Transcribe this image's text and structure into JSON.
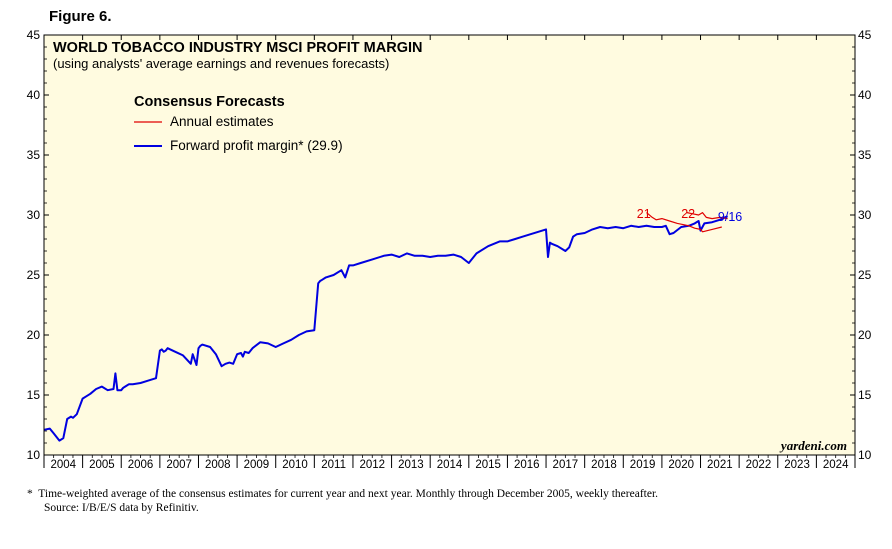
{
  "figure_label": "Figure 6.",
  "chart_data": {
    "type": "line",
    "title": "WORLD TOBACCO INDUSTRY MSCI PROFIT MARGIN",
    "subtitle": "(using analysts' average earnings and revenues forecasts)",
    "legend_title": "Consensus Forecasts",
    "legend": [
      {
        "label": "Annual estimates",
        "color": "#e00000"
      },
      {
        "label": "Forward profit margin* (29.9)",
        "color": "#0000e0"
      }
    ],
    "watermark": "yardeni.com",
    "ylim": [
      10,
      45
    ],
    "yticks": [
      10,
      15,
      20,
      25,
      30,
      35,
      40,
      45
    ],
    "xlim": [
      2004,
      2025
    ],
    "xtick_labels": [
      "2004",
      "2005",
      "2006",
      "2007",
      "2008",
      "2009",
      "2010",
      "2011",
      "2012",
      "2013",
      "2014",
      "2015",
      "2016",
      "2017",
      "2018",
      "2019",
      "2020",
      "2021",
      "2022",
      "2023",
      "2024"
    ],
    "background": "#fffbe0",
    "annotations": [
      {
        "text": "21",
        "x": 2019.35,
        "y": 30.1,
        "color": "#e00000"
      },
      {
        "text": "22",
        "x": 2020.5,
        "y": 30.1,
        "color": "#e00000"
      },
      {
        "text": "9/16",
        "x": 2021.45,
        "y": 29.85,
        "color": "#0000e0"
      }
    ],
    "series": [
      {
        "name": "Forward profit margin* (29.9)",
        "color": "#0000e0",
        "x": [
          2004.0,
          2004.15,
          2004.25,
          2004.4,
          2004.5,
          2004.6,
          2004.7,
          2004.75,
          2004.85,
          2005.0,
          2005.1,
          2005.2,
          2005.35,
          2005.5,
          2005.65,
          2005.8,
          2005.85,
          2005.9,
          2006.0,
          2006.05,
          2006.1,
          2006.2,
          2006.3,
          2006.5,
          2006.7,
          2006.9,
          2007.0,
          2007.05,
          2007.1,
          2007.15,
          2007.2,
          2007.4,
          2007.6,
          2007.8,
          2007.85,
          2007.95,
          2008.0,
          2008.05,
          2008.1,
          2008.3,
          2008.45,
          2008.6,
          2008.7,
          2008.8,
          2008.9,
          2009.0,
          2009.1,
          2009.15,
          2009.2,
          2009.3,
          2009.4,
          2009.6,
          2009.8,
          2010.0,
          2010.2,
          2010.4,
          2010.6,
          2010.8,
          2011.0,
          2011.1,
          2011.15,
          2011.2,
          2011.3,
          2011.5,
          2011.7,
          2011.8,
          2011.9,
          2012.0,
          2012.2,
          2012.5,
          2012.8,
          2013.0,
          2013.2,
          2013.4,
          2013.6,
          2013.8,
          2014.0,
          2014.2,
          2014.4,
          2014.6,
          2014.8,
          2015.0,
          2015.2,
          2015.5,
          2015.8,
          2016.0,
          2016.2,
          2016.4,
          2016.6,
          2016.8,
          2017.0,
          2017.05,
          2017.1,
          2017.15,
          2017.3,
          2017.5,
          2017.6,
          2017.7,
          2017.8,
          2018.0,
          2018.2,
          2018.4,
          2018.6,
          2018.8,
          2019.0,
          2019.2,
          2019.4,
          2019.6,
          2019.8,
          2020.0,
          2020.1,
          2020.2,
          2020.3,
          2020.5,
          2020.7,
          2020.85,
          2020.95,
          2021.0,
          2021.1,
          2021.3,
          2021.5,
          2021.7
        ],
        "values": [
          12.1,
          12.2,
          11.8,
          11.2,
          11.4,
          13.0,
          13.2,
          13.1,
          13.4,
          14.7,
          14.9,
          15.1,
          15.5,
          15.7,
          15.4,
          15.5,
          16.8,
          15.4,
          15.4,
          15.6,
          15.7,
          15.9,
          15.9,
          16.0,
          16.2,
          16.4,
          18.7,
          18.8,
          18.6,
          18.7,
          18.9,
          18.6,
          18.3,
          17.6,
          18.4,
          17.5,
          18.9,
          19.1,
          19.2,
          19.0,
          18.4,
          17.4,
          17.6,
          17.7,
          17.6,
          18.4,
          18.5,
          18.2,
          18.6,
          18.5,
          18.9,
          19.4,
          19.3,
          19.0,
          19.3,
          19.6,
          20.0,
          20.3,
          20.4,
          24.3,
          24.5,
          24.6,
          24.8,
          25.0,
          25.4,
          24.8,
          25.8,
          25.8,
          26.0,
          26.3,
          26.6,
          26.7,
          26.5,
          26.8,
          26.6,
          26.6,
          26.5,
          26.6,
          26.6,
          26.7,
          26.5,
          26.0,
          26.8,
          27.4,
          27.8,
          27.8,
          28.0,
          28.2,
          28.4,
          28.6,
          28.8,
          26.5,
          27.7,
          27.6,
          27.4,
          27.0,
          27.3,
          28.2,
          28.4,
          28.5,
          28.8,
          29.0,
          28.9,
          29.0,
          28.9,
          29.1,
          29.0,
          29.1,
          29.0,
          29.0,
          29.1,
          28.4,
          28.5,
          29.0,
          29.1,
          29.3,
          29.5,
          28.7,
          29.3,
          29.4,
          29.6,
          29.9
        ]
      },
      {
        "name": "",
        "color": "#e00000",
        "x": [
          2019.6,
          2019.75,
          2019.85,
          2020.0,
          2020.2,
          2020.4,
          2020.55,
          2020.7,
          2020.85,
          2021.0,
          2021.05,
          2021.3,
          2021.55
        ],
        "values": [
          30.2,
          29.8,
          29.6,
          29.7,
          29.5,
          29.3,
          29.2,
          29.1,
          28.9,
          28.8,
          28.6,
          28.8,
          29.0
        ]
      },
      {
        "name": "",
        "color": "#e00000",
        "x": [
          2020.65,
          2020.8,
          2020.95,
          2021.05,
          2021.15,
          2021.3,
          2021.5,
          2021.7
        ],
        "values": [
          30.2,
          30.1,
          30.0,
          30.2,
          29.8,
          29.7,
          29.8,
          29.7
        ]
      }
    ]
  },
  "footnote": "*  Time-weighted average of the consensus estimates for current year and next year. Monthly through December 2005, weekly thereafter.",
  "source": "Source: I/B/E/S data by Refinitiv."
}
